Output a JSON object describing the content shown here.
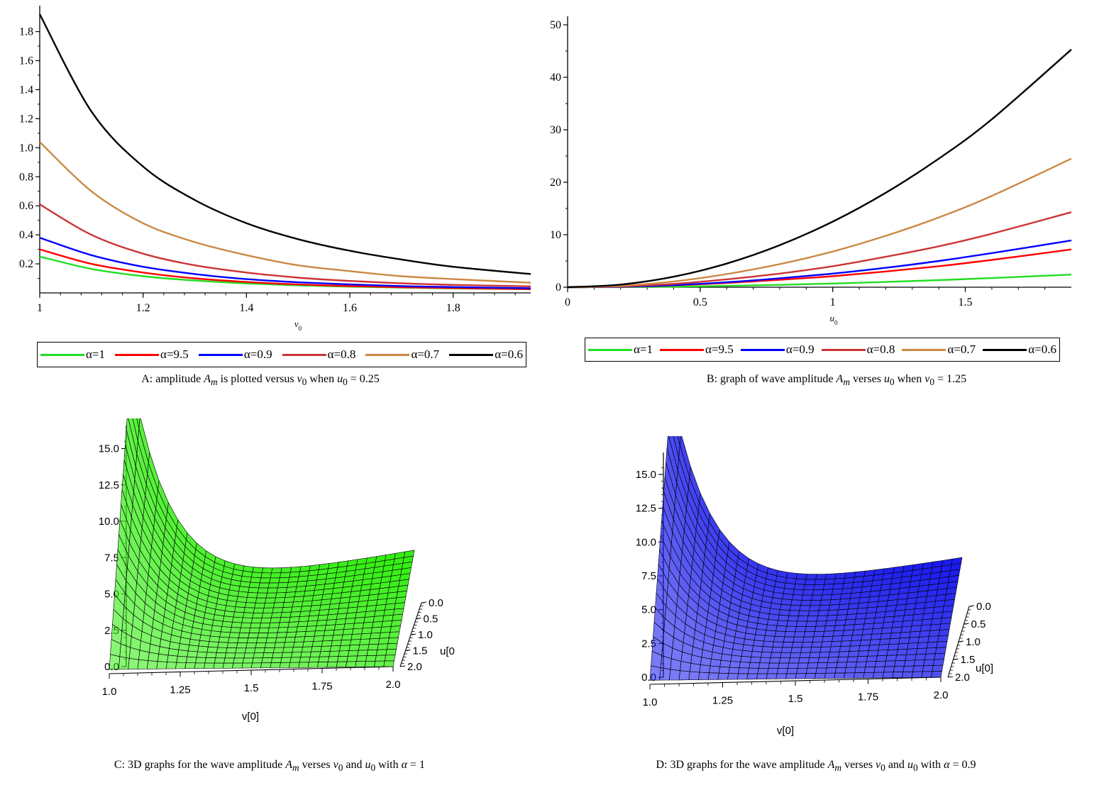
{
  "chart_data": [
    {
      "id": "A",
      "type": "line",
      "xlabel": "v0",
      "ylabel": "",
      "xlim": [
        1,
        1.95
      ],
      "ylim": [
        0,
        1.92
      ],
      "xticks": [
        "1",
        "1.2",
        "1.4",
        "1.6",
        "1.8"
      ],
      "yticks": [
        "0.2",
        "0.4",
        "0.6",
        "0.8",
        "1.0",
        "1.2",
        "1.4",
        "1.6",
        "1.8"
      ],
      "legend_position": "bottom",
      "series": [
        {
          "name": "α=1",
          "color": "#22dd22",
          "x": [
            1.0,
            1.1,
            1.2,
            1.3,
            1.4,
            1.5,
            1.6,
            1.7,
            1.8,
            1.95
          ],
          "y": [
            0.25,
            0.165,
            0.115,
            0.085,
            0.065,
            0.052,
            0.043,
            0.036,
            0.031,
            0.025
          ]
        },
        {
          "name": "α=9.5",
          "color": "#ff0000",
          "x": [
            1.0,
            1.1,
            1.2,
            1.3,
            1.4,
            1.5,
            1.6,
            1.7,
            1.8,
            1.95
          ],
          "y": [
            0.3,
            0.2,
            0.14,
            0.1,
            0.075,
            0.058,
            0.047,
            0.039,
            0.033,
            0.026
          ]
        },
        {
          "name": "α=0.9",
          "color": "#0000ff",
          "x": [
            1.0,
            1.1,
            1.2,
            1.3,
            1.4,
            1.5,
            1.6,
            1.7,
            1.8,
            1.95
          ],
          "y": [
            0.38,
            0.26,
            0.18,
            0.13,
            0.095,
            0.073,
            0.058,
            0.047,
            0.04,
            0.032
          ]
        },
        {
          "name": "α=0.8",
          "color": "#cc3333",
          "x": [
            1.0,
            1.1,
            1.2,
            1.3,
            1.4,
            1.5,
            1.6,
            1.7,
            1.8,
            1.95
          ],
          "y": [
            0.61,
            0.4,
            0.27,
            0.19,
            0.14,
            0.105,
            0.082,
            0.066,
            0.055,
            0.045
          ]
        },
        {
          "name": "α=0.7",
          "color": "#cc8844",
          "x": [
            1.0,
            1.1,
            1.2,
            1.3,
            1.4,
            1.5,
            1.6,
            1.7,
            1.8,
            1.95
          ],
          "y": [
            1.04,
            0.7,
            0.48,
            0.35,
            0.26,
            0.19,
            0.15,
            0.115,
            0.095,
            0.07
          ]
        },
        {
          "name": "α=0.6",
          "color": "#000000",
          "x": [
            1.0,
            1.1,
            1.2,
            1.3,
            1.4,
            1.5,
            1.6,
            1.7,
            1.8,
            1.95
          ],
          "y": [
            1.92,
            1.25,
            0.87,
            0.64,
            0.48,
            0.37,
            0.29,
            0.23,
            0.18,
            0.13
          ]
        }
      ]
    },
    {
      "id": "B",
      "type": "line",
      "xlabel": "u0",
      "ylabel": "",
      "xlim": [
        0,
        1.9
      ],
      "ylim": [
        0,
        50
      ],
      "xticks": [
        "0",
        "0.5",
        "1",
        "1.5"
      ],
      "yticks": [
        "0",
        "10",
        "20",
        "30",
        "40",
        "50"
      ],
      "legend_position": "bottom",
      "series": [
        {
          "name": "α=1",
          "color": "#22dd22",
          "x": [
            0,
            0.2,
            0.4,
            0.6,
            0.8,
            1.0,
            1.2,
            1.4,
            1.6,
            1.9
          ],
          "y": [
            0,
            0.02,
            0.1,
            0.25,
            0.45,
            0.7,
            1.0,
            1.35,
            1.75,
            2.4
          ]
        },
        {
          "name": "α=9.5",
          "color": "#ff0000",
          "x": [
            0,
            0.2,
            0.4,
            0.6,
            0.8,
            1.0,
            1.2,
            1.4,
            1.6,
            1.9
          ],
          "y": [
            0,
            0.08,
            0.35,
            0.8,
            1.4,
            2.1,
            3.0,
            4.0,
            5.2,
            7.2
          ]
        },
        {
          "name": "α=0.9",
          "color": "#0000ff",
          "x": [
            0,
            0.2,
            0.4,
            0.6,
            0.8,
            1.0,
            1.2,
            1.4,
            1.6,
            1.9
          ],
          "y": [
            0,
            0.1,
            0.4,
            0.95,
            1.7,
            2.6,
            3.7,
            5.0,
            6.5,
            8.9
          ]
        },
        {
          "name": "α=0.8",
          "color": "#cc3333",
          "x": [
            0,
            0.2,
            0.4,
            0.6,
            0.8,
            1.0,
            1.2,
            1.4,
            1.6,
            1.9
          ],
          "y": [
            0,
            0.16,
            0.64,
            1.5,
            2.6,
            4.0,
            5.8,
            7.8,
            10.2,
            14.3
          ]
        },
        {
          "name": "α=0.7",
          "color": "#cc8844",
          "x": [
            0,
            0.2,
            0.4,
            0.6,
            0.8,
            1.0,
            1.2,
            1.4,
            1.6,
            1.9
          ],
          "y": [
            0,
            0.27,
            1.1,
            2.5,
            4.4,
            6.8,
            9.8,
            13.3,
            17.4,
            24.5
          ]
        },
        {
          "name": "α=0.6",
          "color": "#000000",
          "x": [
            0,
            0.2,
            0.4,
            0.6,
            0.8,
            1.0,
            1.2,
            1.4,
            1.6,
            1.9
          ],
          "y": [
            0,
            0.5,
            2.0,
            4.5,
            8.0,
            12.5,
            18.0,
            24.5,
            32.0,
            45.3
          ]
        }
      ]
    },
    {
      "id": "C",
      "type": "surface3d",
      "xlabel": "v[0]",
      "ylabel": "u[0",
      "xticks": [
        "1.0",
        "1.25",
        "1.5",
        "1.75",
        "2.0"
      ],
      "yticks": [
        "0.0",
        "0.5",
        "1.0",
        "1.5",
        "2.0"
      ],
      "zticks": [
        "0.0",
        "2.5",
        "5.0",
        "7.5",
        "10.0",
        "12.5",
        "15.0"
      ],
      "zlim": [
        0,
        16
      ],
      "surface_color": "#33ee11"
    },
    {
      "id": "D",
      "type": "surface3d",
      "xlabel": "v[0]",
      "ylabel": "u[0]",
      "xticks": [
        "1.0",
        "1.25",
        "1.5",
        "1.75",
        "2.0"
      ],
      "yticks": [
        "0.0",
        "0.5",
        "1.0",
        "1.5",
        "2.0"
      ],
      "zticks": [
        "0.0",
        "2.5",
        "5.0",
        "7.5",
        "10.0",
        "12.5",
        "15.0"
      ],
      "zlim": [
        0,
        16
      ],
      "surface_color": "#1a1aee"
    }
  ],
  "captions": {
    "a": {
      "t1": "A: amplitude ",
      "s1": "A",
      "s1sub": "m",
      "t2": " is plotted versus ",
      "s2": "v",
      "s2sub": "0",
      "t3": " when ",
      "s3": "u",
      "s3sub": "0",
      "t4": " = 0.25"
    },
    "b": {
      "t1": "B: graph of wave amplitude ",
      "s1": "A",
      "s1sub": "m",
      "t2": " verses ",
      "s2": "u",
      "s2sub": "0",
      "t3": "  when ",
      "s3": "v",
      "s3sub": "0",
      "t4": " = 1.25"
    },
    "c": {
      "t1": "C: 3D graphs for the wave amplitude ",
      "s1": "A",
      "s1sub": "m",
      "t2": " verses ",
      "s2": "v",
      "s2sub": "0",
      "t3": " and ",
      "s3": "u",
      "s3sub": "0",
      "t4": " with ",
      "s4": "α",
      "t5": " = 1"
    },
    "d": {
      "t1": "D: 3D graphs for the wave amplitude ",
      "s1": "A",
      "s1sub": "m",
      "t2": " verses ",
      "s2": "v",
      "s2sub": "0",
      "t3": " and ",
      "s3": "u",
      "s3sub": "0",
      "t4": " with ",
      "s4": "α",
      "t5": " = 0.9"
    }
  }
}
